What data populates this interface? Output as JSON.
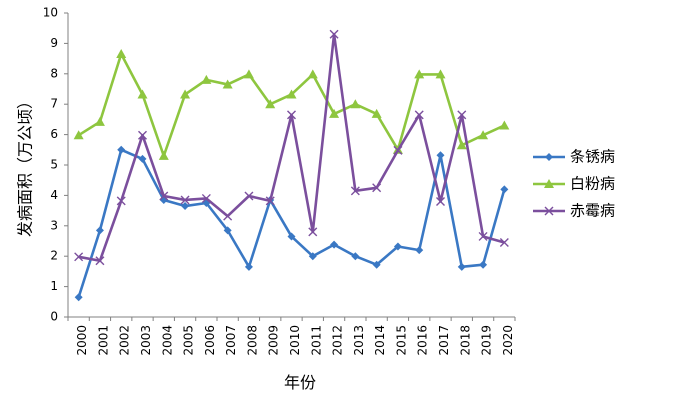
{
  "chart_data": {
    "type": "line",
    "title": "",
    "xlabel": "年份",
    "ylabel": "发病面积（万公顷）",
    "ylim": [
      0,
      10
    ],
    "yticks": [
      "0",
      "1",
      "2",
      "3",
      "4",
      "5",
      "6",
      "7",
      "8",
      "9",
      "10"
    ],
    "grid": false,
    "legend_position": "right",
    "categories": [
      "2000",
      "2001",
      "2002",
      "2003",
      "2004",
      "2005",
      "2006",
      "2007",
      "2008",
      "2009",
      "2010",
      "2011",
      "2012",
      "2013",
      "2014",
      "2015",
      "2016",
      "2017",
      "2018",
      "2019",
      "2020"
    ],
    "series": [
      {
        "name": "条锈病",
        "color": "#3a78c4",
        "marker": "diamond",
        "values": [
          0.65,
          2.85,
          5.5,
          5.2,
          3.85,
          3.65,
          3.75,
          2.85,
          1.65,
          3.85,
          2.65,
          2.0,
          2.38,
          2.0,
          1.72,
          2.32,
          2.2,
          5.32,
          1.65,
          1.72,
          4.2
        ]
      },
      {
        "name": "白粉病",
        "color": "#8ec63f",
        "marker": "triangle",
        "values": [
          5.98,
          6.42,
          8.65,
          7.32,
          5.3,
          7.32,
          7.8,
          7.65,
          7.98,
          7.0,
          7.32,
          7.98,
          6.68,
          7.0,
          6.68,
          5.5,
          7.98,
          7.98,
          5.65,
          5.98,
          6.3
        ]
      },
      {
        "name": "赤霉病",
        "color": "#7b4f9d",
        "marker": "x",
        "values": [
          1.98,
          1.85,
          3.82,
          5.98,
          3.98,
          3.85,
          3.9,
          3.32,
          3.98,
          3.82,
          6.65,
          2.8,
          9.3,
          4.15,
          4.25,
          5.48,
          6.65,
          3.8,
          6.65,
          2.65,
          2.45
        ]
      }
    ]
  }
}
